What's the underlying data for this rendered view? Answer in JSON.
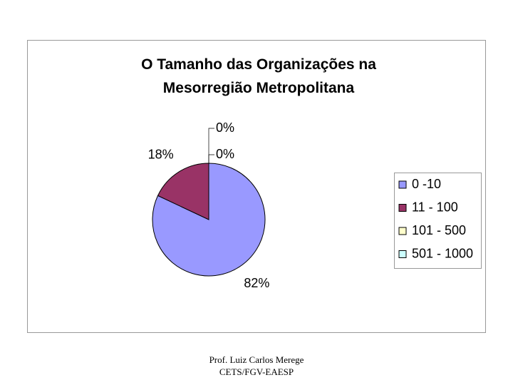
{
  "chart_data": {
    "type": "pie",
    "title": "O Tamanho das Organizações na Mesorregião Metropolitana",
    "categories": [
      "0 -10",
      "11 - 100",
      "101 - 500",
      "501 - 1000"
    ],
    "values": [
      82,
      18,
      0,
      0
    ],
    "value_labels": [
      "82%",
      "18%",
      "0%",
      "0%"
    ],
    "colors": [
      "#9999ff",
      "#993366",
      "#ffffcc",
      "#ccffff"
    ],
    "legend": "right"
  },
  "footer": {
    "lines": [
      "Prof. Luiz Carlos Merege",
      "CETS/FGV-EAESP"
    ]
  }
}
